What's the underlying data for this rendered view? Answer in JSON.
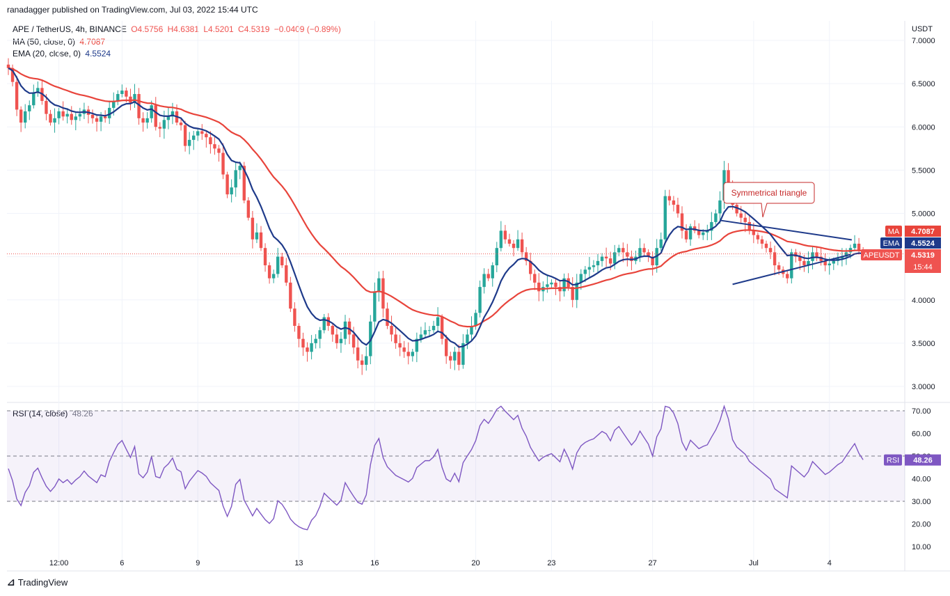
{
  "header": {
    "publisher": "ranadagger published on TradingView.com, Jul 03, 2022 15:44 UTC",
    "symbol": "APE / TetherUS, 4h, BINANCE",
    "ohlc": {
      "o": "O4.5756",
      "h": "H4.6381",
      "l": "L4.5201",
      "c": "C4.5319",
      "chg": "−0.0409 (−0.89%)"
    },
    "ma_label": "MA (50, close, 0)",
    "ma_value": "4.7087",
    "ema_label": "EMA (20, close, 0)",
    "ema_value": "4.5524",
    "rsi_label": "RSI (14, close)",
    "rsi_value": "48.26"
  },
  "footer": {
    "brand": "TradingView"
  },
  "colors": {
    "up": "#26a69a",
    "down": "#ef5350",
    "ma": "#e8443b",
    "ema": "#1e3a8a",
    "rsi": "#7e57c2",
    "trendline": "#1e3a8a"
  },
  "chart_data": [
    {
      "type": "candlestick",
      "currency": "USDT",
      "y_ticks": [
        "7.0000",
        "6.5000",
        "6.0000",
        "5.5000",
        "5.0000",
        "4.5000",
        "4.0000",
        "3.5000",
        "3.0000"
      ],
      "ylim": [
        2.95,
        7.05
      ],
      "x_ticks": [
        {
          "label": "12:00",
          "i": 12
        },
        {
          "label": "6",
          "i": 27
        },
        {
          "label": "9",
          "i": 45
        },
        {
          "label": "13",
          "i": 69
        },
        {
          "label": "16",
          "i": 87
        },
        {
          "label": "20",
          "i": 111
        },
        {
          "label": "23",
          "i": 129
        },
        {
          "label": "27",
          "i": 153
        },
        {
          "label": "Jul",
          "i": 177
        },
        {
          "label": "4",
          "i": 195
        }
      ],
      "closes": [
        6.68,
        6.52,
        6.2,
        6.05,
        6.18,
        6.25,
        6.4,
        6.45,
        6.3,
        6.15,
        6.05,
        6.1,
        6.18,
        6.12,
        6.15,
        6.08,
        6.12,
        6.15,
        6.2,
        6.14,
        6.1,
        6.06,
        6.12,
        6.1,
        6.22,
        6.3,
        6.38,
        6.42,
        6.35,
        6.28,
        6.38,
        6.1,
        6.05,
        6.1,
        6.25,
        6.0,
        5.98,
        6.08,
        6.12,
        6.18,
        6.05,
        6.02,
        5.78,
        5.85,
        5.9,
        5.95,
        5.92,
        5.88,
        5.8,
        5.75,
        5.7,
        5.45,
        5.22,
        5.3,
        5.5,
        5.55,
        5.15,
        4.95,
        4.7,
        4.78,
        4.6,
        4.4,
        4.25,
        4.3,
        4.5,
        4.4,
        4.2,
        3.9,
        3.7,
        3.55,
        3.45,
        3.4,
        3.5,
        3.55,
        3.65,
        3.8,
        3.7,
        3.6,
        3.5,
        3.55,
        3.75,
        3.6,
        3.45,
        3.3,
        3.25,
        3.35,
        3.75,
        4.1,
        4.25,
        3.9,
        3.7,
        3.6,
        3.5,
        3.45,
        3.4,
        3.35,
        3.4,
        3.55,
        3.6,
        3.65,
        3.65,
        3.7,
        3.8,
        3.55,
        3.35,
        3.3,
        3.4,
        3.25,
        3.5,
        3.6,
        3.7,
        3.85,
        4.15,
        4.3,
        4.25,
        4.4,
        4.6,
        4.8,
        4.7,
        4.65,
        4.6,
        4.7,
        4.55,
        4.45,
        4.3,
        4.2,
        4.1,
        4.15,
        4.18,
        4.2,
        4.15,
        4.1,
        4.25,
        4.15,
        4.0,
        4.2,
        4.3,
        4.35,
        4.38,
        4.4,
        4.45,
        4.5,
        4.48,
        4.42,
        4.55,
        4.6,
        4.55,
        4.5,
        4.45,
        4.5,
        4.6,
        4.55,
        4.5,
        4.4,
        4.6,
        4.7,
        5.2,
        5.15,
        5.1,
        5.0,
        4.8,
        4.7,
        4.85,
        4.8,
        4.75,
        4.78,
        4.8,
        4.9,
        5.0,
        5.15,
        5.5,
        5.35,
        5.1,
        5.0,
        4.95,
        4.9,
        4.8,
        4.75,
        4.7,
        4.65,
        4.6,
        4.55,
        4.4,
        4.35,
        4.3,
        4.25,
        4.55,
        4.5,
        4.45,
        4.4,
        4.45,
        4.55,
        4.5,
        4.45,
        4.4,
        4.42,
        4.45,
        4.48,
        4.5,
        4.55,
        4.6,
        4.65,
        4.58,
        4.53
      ],
      "ma50_last": 4.7087,
      "ema20_last": 4.5524,
      "last_close": 4.5319,
      "price_tags": [
        {
          "label": "MA",
          "value": "4.7087"
        },
        {
          "label": "EMA",
          "value": "4.5524"
        },
        {
          "label": "APEUSDT",
          "value": "4.5319",
          "sub": "15:44"
        }
      ],
      "annotation": {
        "text": "Symmetrical triangle",
        "upper": [
          [
            169,
            4.92
          ],
          [
            197,
            4.67
          ]
        ],
        "lower": [
          [
            172,
            4.18
          ],
          [
            197,
            4.54
          ]
        ]
      }
    },
    {
      "type": "line",
      "name": "RSI",
      "y_ticks": [
        "70.00",
        "60.00",
        "50.00",
        "40.00",
        "30.00",
        "20.00",
        "10.00"
      ],
      "ylim": [
        6,
        74
      ],
      "levels": [
        70,
        50,
        30
      ],
      "last_value": "48.26"
    }
  ]
}
